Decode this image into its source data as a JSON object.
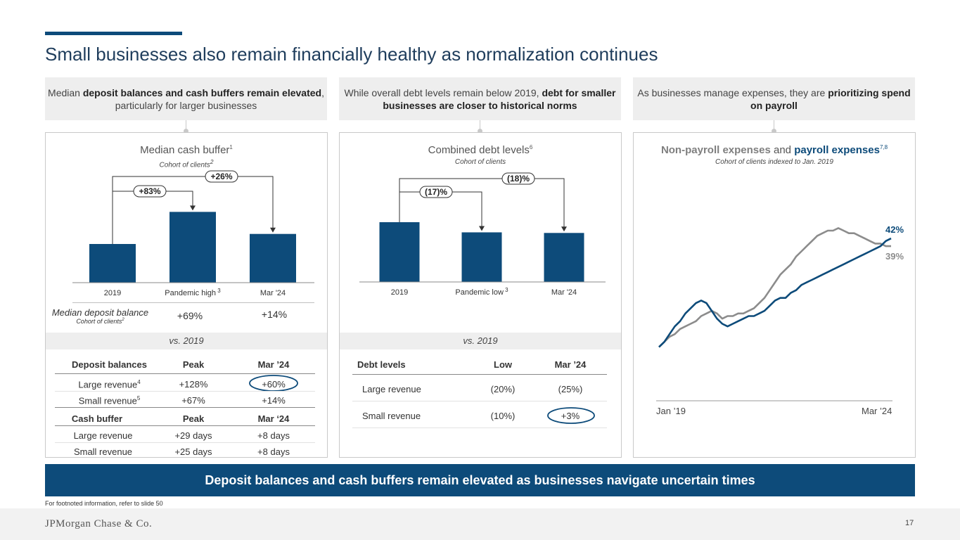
{
  "header": {
    "title": "Small businesses also remain financially healthy as normalization continues"
  },
  "callouts": [
    {
      "pre": "Median ",
      "bold": "deposit balances and cash buffers remain elevated",
      "post": ", particularly for larger businesses"
    },
    {
      "pre": "While overall debt levels remain below 2019, ",
      "bold": "debt for smaller businesses are closer to historical norms",
      "post": ""
    },
    {
      "pre": "As businesses manage expenses, they are ",
      "bold": "prioritizing spend on payroll",
      "post": ""
    }
  ],
  "panel1": {
    "title": "Median cash buffer",
    "title_sup": "1",
    "subtitle": "Cohort of clients",
    "subtitle_sup": "2",
    "vs_label": "vs. 2019",
    "deposit_row": {
      "label": "Median deposit balance",
      "sublabel": "Cohort of clients",
      "sublabel_sup": "2",
      "pandemic": "+69%",
      "mar24": "+14%"
    },
    "table": {
      "headers": [
        "Deposit balances",
        "Peak",
        "Mar ’24"
      ],
      "rows": [
        {
          "label": "Large revenue",
          "sup": "4",
          "peak": "+128%",
          "mar": "+60%"
        },
        {
          "label": "Small revenue",
          "sup": "5",
          "peak": "+67%",
          "mar": "+14%"
        }
      ],
      "headers2": [
        "Cash buffer",
        "Peak",
        "Mar ‘24"
      ],
      "rows2": [
        {
          "label": "Large revenue",
          "peak": "+29 days",
          "mar": "+8 days"
        },
        {
          "label": "Small revenue",
          "peak": "+25 days",
          "mar": "+8 days"
        }
      ]
    }
  },
  "panel2": {
    "title": "Combined debt levels",
    "title_sup": "6",
    "subtitle": "Cohort of clients",
    "vs_label": "vs. 2019",
    "table": {
      "headers": [
        "Debt levels",
        "Low",
        "Mar ’24"
      ],
      "rows": [
        {
          "label": "Large revenue",
          "low": "(20%)",
          "mar": "(25%)"
        },
        {
          "label": "Small revenue",
          "low": "(10%)",
          "mar": "+3%"
        }
      ]
    }
  },
  "panel3": {
    "title_a": "Non-payroll expenses",
    "title_and": " and ",
    "title_b": "payroll expenses",
    "title_sup": "7,8",
    "subtitle": "Cohort of clients indexed to Jan. 2019",
    "x_start": "Jan ’19",
    "x_end": "Mar ’24",
    "payroll_end_label": "42%",
    "nonpayroll_end_label": "39%"
  },
  "colors": {
    "navy": "#0d4b7a",
    "grey_line": "#8c8c8c"
  },
  "chart_data": [
    {
      "type": "bar",
      "title": "Median cash buffer",
      "subtitle": "Cohort of clients",
      "categories": [
        "2019",
        "Pandemic high",
        "Mar '24"
      ],
      "category_sups": [
        "",
        "3",
        ""
      ],
      "values": [
        100,
        183,
        126
      ],
      "annotations": [
        {
          "from": "2019",
          "to": "Pandemic high",
          "label": "+83%"
        },
        {
          "from": "2019",
          "to": "Mar '24",
          "label": "+26%"
        }
      ]
    },
    {
      "type": "bar",
      "title": "Combined debt levels",
      "subtitle": "Cohort of clients",
      "categories": [
        "2019",
        "Pandemic low",
        "Mar '24"
      ],
      "category_sups": [
        "",
        "3",
        ""
      ],
      "values": [
        100,
        83,
        82
      ],
      "annotations": [
        {
          "from": "2019",
          "to": "Pandemic low",
          "label": "(17)%"
        },
        {
          "from": "2019",
          "to": "Mar '24",
          "label": "(18)%"
        }
      ]
    },
    {
      "type": "line",
      "title": "Non-payroll expenses and payroll expenses",
      "xlabel": "",
      "ylabel": "",
      "x_range": [
        "Jan '19",
        "Mar '24"
      ],
      "ylim": [
        -2,
        48
      ],
      "series": [
        {
          "name": "Non-payroll expenses",
          "color": "#8c8c8c",
          "end_label": "39%",
          "values": [
            0,
            2,
            4,
            5,
            7,
            8,
            9,
            10,
            12,
            13,
            14,
            13,
            11,
            12,
            12,
            13,
            13,
            14,
            15,
            17,
            19,
            22,
            25,
            28,
            30,
            32,
            35,
            37,
            39,
            41,
            43,
            44,
            45,
            45,
            46,
            45,
            44,
            44,
            43,
            42,
            41,
            40,
            40,
            39,
            39
          ]
        },
        {
          "name": "Payroll expenses",
          "color": "#0d4b7a",
          "end_label": "42%",
          "values": [
            0,
            2,
            5,
            8,
            10,
            13,
            15,
            17,
            18,
            17,
            14,
            11,
            9,
            8,
            9,
            10,
            11,
            12,
            12,
            13,
            14,
            16,
            18,
            19,
            19,
            21,
            22,
            24,
            25,
            26,
            27,
            28,
            29,
            30,
            31,
            32,
            33,
            34,
            35,
            36,
            37,
            38,
            39,
            41,
            42
          ]
        }
      ]
    }
  ],
  "banner": "Deposit balances and cash buffers remain elevated as businesses navigate uncertain times",
  "footnote": "For footnoted information, refer to slide 50",
  "footer": {
    "logo": "JPMorgan Chase & Co.",
    "page": "17"
  }
}
